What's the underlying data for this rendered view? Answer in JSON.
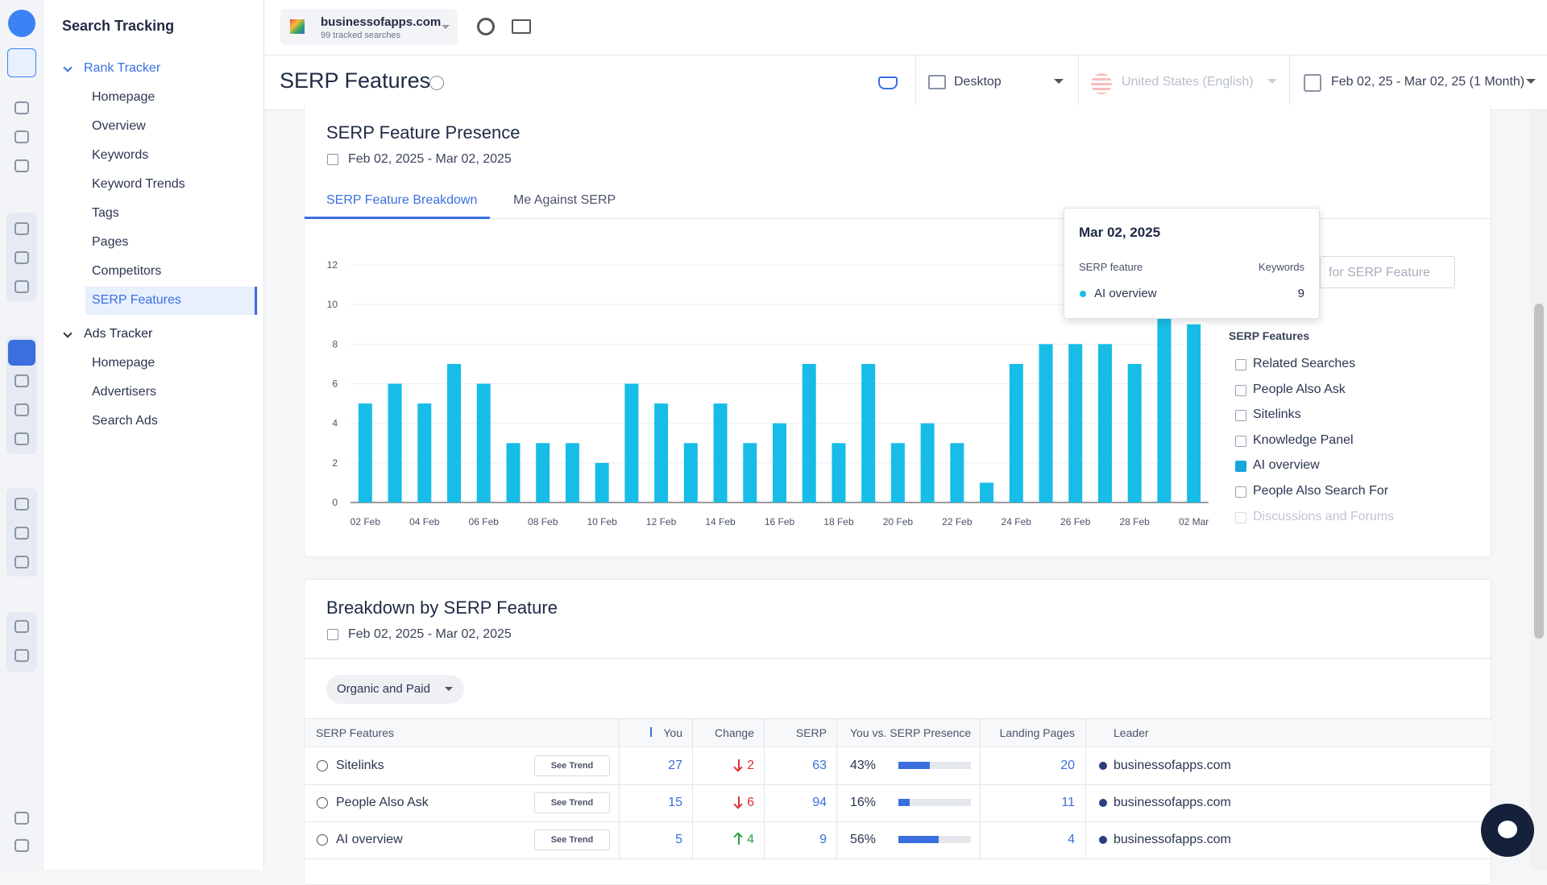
{
  "nav": {
    "title": "Search Tracking",
    "groups": [
      {
        "name": "Rank Tracker",
        "items": [
          "Homepage",
          "Overview",
          "Keywords",
          "Keyword Trends",
          "Tags",
          "Pages",
          "Competitors",
          "SERP Features"
        ],
        "active": 7
      },
      {
        "name": "Ads Tracker",
        "items": [
          "Homepage",
          "Advertisers",
          "Search Ads"
        ]
      }
    ]
  },
  "header": {
    "project": "businessofapps.com",
    "project_sub": "99 tracked searches",
    "page_title": "SERP Features",
    "device": "Desktop",
    "location": "United States (English)",
    "date_range": "Feb 02, 25 - Mar 02, 25 (1 Month)"
  },
  "presence_card": {
    "title": "SERP Feature Presence",
    "date": "Feb 02, 2025 - Mar 02, 2025",
    "tabs": [
      "SERP Feature Breakdown",
      "Me Against SERP"
    ],
    "active_tab": 0,
    "search_placeholder": "for SERP Feature",
    "filters_title": "SERP Features",
    "filters": [
      {
        "name": "Related Searches",
        "checked": false
      },
      {
        "name": "People Also Ask",
        "checked": false
      },
      {
        "name": "Sitelinks",
        "checked": false
      },
      {
        "name": "Knowledge Panel",
        "checked": false
      },
      {
        "name": "AI overview",
        "checked": true
      },
      {
        "name": "People Also Search For",
        "checked": false
      },
      {
        "name": "Discussions and Forums",
        "checked": false,
        "disabled": true
      }
    ],
    "tooltip": {
      "title": "Mar 02, 2025",
      "col1": "SERP feature",
      "col2": "Keywords",
      "series": "AI overview",
      "value": "9"
    }
  },
  "chart_data": {
    "type": "bar",
    "categories": [
      "02 Feb",
      null,
      "04 Feb",
      null,
      "06 Feb",
      null,
      "08 Feb",
      null,
      "10 Feb",
      null,
      "12 Feb",
      null,
      "14 Feb",
      null,
      "16 Feb",
      null,
      "18 Feb",
      null,
      "20 Feb",
      null,
      "22 Feb",
      null,
      "24 Feb",
      null,
      "26 Feb",
      null,
      "28 Feb",
      null,
      "02 Mar"
    ],
    "values": [
      5,
      6,
      5,
      7,
      6,
      3,
      3,
      3,
      2,
      6,
      5,
      3,
      5,
      3,
      4,
      7,
      3,
      7,
      3,
      4,
      3,
      1,
      7,
      8,
      8,
      8,
      7,
      10,
      9
    ],
    "color": "#17bde6",
    "ylim": [
      0,
      12
    ],
    "yticks": [
      0,
      2,
      4,
      6,
      8,
      10,
      12
    ],
    "grid": true
  },
  "breakdown_card": {
    "title": "Breakdown by SERP Feature",
    "date": "Feb 02, 2025 - Mar 02, 2025",
    "filter": "Organic and Paid"
  },
  "table": {
    "columns": [
      "SERP Features",
      "You",
      "Change",
      "SERP",
      "You vs. SERP Presence",
      "Landing Pages",
      "Leader"
    ],
    "button": "See Trend",
    "rows": [
      {
        "feature": "Sitelinks",
        "you": "27",
        "change": "2",
        "direction": "down",
        "serp": "63",
        "presence": 43,
        "presence_label": "43%",
        "landing": "20",
        "leader": "businessofapps.com"
      },
      {
        "feature": "People Also Ask",
        "you": "15",
        "change": "6",
        "direction": "down",
        "serp": "94",
        "presence": 16,
        "presence_label": "16%",
        "landing": "11",
        "leader": "businessofapps.com"
      },
      {
        "feature": "AI overview",
        "you": "5",
        "change": "4",
        "direction": "up",
        "serp": "9",
        "presence": 56,
        "presence_label": "56%",
        "landing": "4",
        "leader": "businessofapps.com"
      }
    ]
  }
}
